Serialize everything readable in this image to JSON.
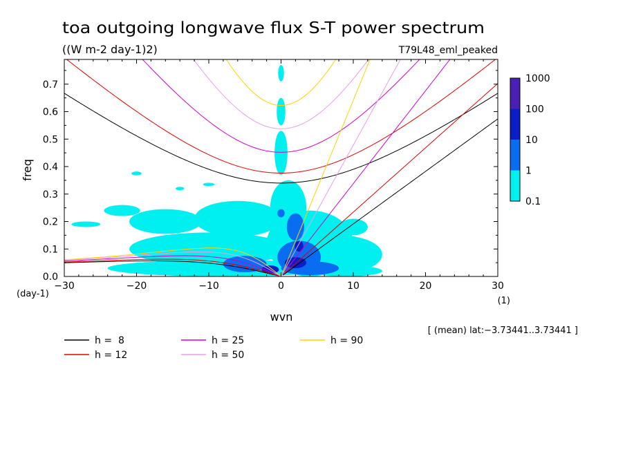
{
  "chart_data": {
    "type": "heatmap",
    "title": "toa outgoing longwave flux S-T power spectrum",
    "subtitle": "((W m-2 day-1)2)",
    "run_label": "T79L48_eml_peaked",
    "xlabel": "wvn",
    "ylabel": "freq",
    "x_unit": "(1)",
    "y_unit": "(day-1)",
    "xlim": [
      -30,
      30
    ],
    "ylim": [
      0,
      0.79
    ],
    "x_ticks": [
      -30,
      -20,
      -10,
      0,
      10,
      20,
      30
    ],
    "x_tick_labels": [
      "−30",
      "−20",
      "−10",
      "0",
      "10",
      "20",
      "30"
    ],
    "y_ticks": [
      0.0,
      0.1,
      0.2,
      0.3,
      0.4,
      0.5,
      0.6,
      0.7
    ],
    "y_tick_labels": [
      "0.0",
      "0.1",
      "0.2",
      "0.3",
      "0.4",
      "0.5",
      "0.6",
      "0.7"
    ],
    "footnote": "[ (mean) lat:−3.73441..3.73441 ]",
    "colorbar": {
      "levels": [
        "0.1",
        "1",
        "10",
        "100",
        "1000"
      ],
      "colors": [
        "#00f0f0",
        "#0a6cf0",
        "#0a1ec8",
        "#4a20b4"
      ]
    },
    "power_regions": [
      {
        "level": 0,
        "x": -20,
        "y": 0.375,
        "rx": 0.7,
        "ry": 0.007
      },
      {
        "level": 0,
        "x": -10,
        "y": 0.335,
        "rx": 0.8,
        "ry": 0.006
      },
      {
        "level": 0,
        "x": -14,
        "y": 0.32,
        "rx": 0.6,
        "ry": 0.006
      },
      {
        "level": 0,
        "x": -16,
        "y": 0.2,
        "rx": 5,
        "ry": 0.045
      },
      {
        "level": 0,
        "x": -6,
        "y": 0.21,
        "rx": 6,
        "ry": 0.065
      },
      {
        "level": 0,
        "x": -22,
        "y": 0.24,
        "rx": 2.5,
        "ry": 0.02
      },
      {
        "level": 0,
        "x": -27,
        "y": 0.19,
        "rx": 2,
        "ry": 0.01
      },
      {
        "level": 0,
        "x": -10,
        "y": 0.1,
        "rx": 11,
        "ry": 0.06
      },
      {
        "level": 0,
        "x": -8,
        "y": 0.03,
        "rx": 16,
        "ry": 0.03
      },
      {
        "level": 0,
        "x": 0,
        "y": 0.45,
        "rx": 0.9,
        "ry": 0.08
      },
      {
        "level": 0,
        "x": 0,
        "y": 0.6,
        "rx": 0.6,
        "ry": 0.05
      },
      {
        "level": 0,
        "x": 0,
        "y": 0.74,
        "rx": 0.4,
        "ry": 0.03
      },
      {
        "level": 0,
        "x": 1,
        "y": 0.25,
        "rx": 2.5,
        "ry": 0.1
      },
      {
        "level": 0,
        "x": 4,
        "y": 0.12,
        "rx": 6,
        "ry": 0.12
      },
      {
        "level": 0,
        "x": 8,
        "y": 0.08,
        "rx": 6,
        "ry": 0.07
      },
      {
        "level": 0,
        "x": 10,
        "y": 0.18,
        "rx": 2,
        "ry": 0.03
      },
      {
        "level": 0,
        "x": 9,
        "y": 0.02,
        "rx": 5,
        "ry": 0.02
      },
      {
        "level": 1,
        "x": -5,
        "y": 0.045,
        "rx": 3,
        "ry": 0.03
      },
      {
        "level": 1,
        "x": 2,
        "y": 0.18,
        "rx": 1.2,
        "ry": 0.05
      },
      {
        "level": 1,
        "x": 2.5,
        "y": 0.07,
        "rx": 3,
        "ry": 0.06
      },
      {
        "level": 1,
        "x": 4,
        "y": 0.03,
        "rx": 4,
        "ry": 0.025
      },
      {
        "level": 1,
        "x": 0,
        "y": 0.23,
        "rx": 0.5,
        "ry": 0.015
      },
      {
        "level": 2,
        "x": 2,
        "y": 0.05,
        "rx": 1.5,
        "ry": 0.02
      },
      {
        "level": 2,
        "x": -1.5,
        "y": 0.025,
        "rx": 1.2,
        "ry": 0.015
      },
      {
        "level": 2,
        "x": 2.5,
        "y": 0.11,
        "rx": 0.6,
        "ry": 0.02
      }
    ],
    "series": [
      {
        "name": "h =  8",
        "h": 8,
        "color": "#000000"
      },
      {
        "name": "h = 12",
        "h": 12,
        "color": "#e00000"
      },
      {
        "name": "h = 25",
        "h": 25,
        "color": "#d200c8"
      },
      {
        "name": "h = 50",
        "h": 50,
        "color": "#e6a0e6"
      },
      {
        "name": "h = 90",
        "h": 90,
        "color": "#ffd200"
      }
    ]
  }
}
